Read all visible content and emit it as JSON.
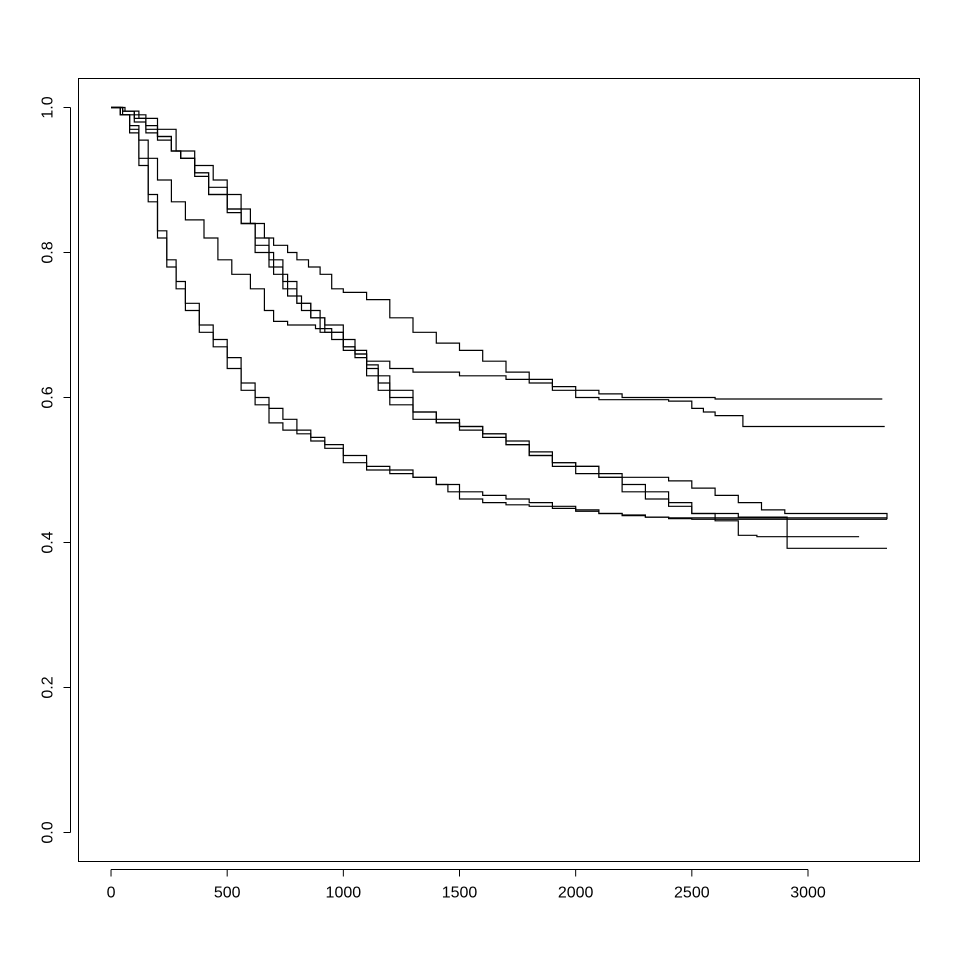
{
  "chart_data": {
    "type": "line",
    "title": "",
    "xlabel": "",
    "ylabel": "",
    "xlim": [
      -140,
      3480
    ],
    "ylim": [
      -0.04,
      1.04
    ],
    "x_ticks": [
      0,
      500,
      1000,
      1500,
      2000,
      2500,
      3000
    ],
    "x_tick_labels": [
      "0",
      "500",
      "1000",
      "1500",
      "2000",
      "2500",
      "3000"
    ],
    "y_ticks": [
      0.0,
      0.2,
      0.4,
      0.6,
      0.8,
      1.0
    ],
    "y_tick_labels": [
      "0.0",
      "0.2",
      "0.4",
      "0.6",
      "0.8",
      "1.0"
    ],
    "grid": false,
    "step": true,
    "series": [
      {
        "x": [
          0,
          60,
          120,
          200,
          280,
          360,
          440,
          500,
          560,
          600,
          660,
          700,
          760,
          800,
          850,
          900,
          950,
          1000,
          1100,
          1200,
          1300,
          1400,
          1500,
          1600,
          1700,
          1800,
          1900,
          2000,
          2100,
          2200,
          2300,
          2400,
          2500,
          2600,
          3320
        ],
        "y": [
          1.0,
          0.995,
          0.985,
          0.97,
          0.94,
          0.92,
          0.9,
          0.88,
          0.86,
          0.84,
          0.82,
          0.81,
          0.8,
          0.79,
          0.78,
          0.77,
          0.75,
          0.745,
          0.735,
          0.71,
          0.69,
          0.675,
          0.665,
          0.65,
          0.635,
          0.625,
          0.615,
          0.61,
          0.605,
          0.6,
          0.6,
          0.6,
          0.6,
          0.598,
          0.598
        ]
      },
      {
        "x": [
          0,
          50,
          100,
          150,
          200,
          260,
          300,
          360,
          420,
          500,
          560,
          620,
          700,
          760,
          820,
          900,
          950,
          1000,
          1050,
          1100,
          1200,
          1300,
          1500,
          1700,
          1800,
          1900,
          2000,
          2100,
          2200,
          2400,
          2500,
          2550,
          2600,
          2720,
          3330
        ],
        "y": [
          1.0,
          0.995,
          0.99,
          0.975,
          0.96,
          0.94,
          0.93,
          0.91,
          0.89,
          0.86,
          0.84,
          0.8,
          0.77,
          0.74,
          0.72,
          0.69,
          0.68,
          0.67,
          0.66,
          0.65,
          0.64,
          0.635,
          0.63,
          0.625,
          0.62,
          0.61,
          0.6,
          0.597,
          0.597,
          0.595,
          0.585,
          0.58,
          0.575,
          0.56,
          0.56
        ]
      },
      {
        "x": [
          0,
          50,
          100,
          150,
          200,
          260,
          300,
          360,
          420,
          500,
          560,
          620,
          680,
          740,
          800,
          860,
          920,
          1000,
          1050,
          1100,
          1150,
          1200,
          1300,
          1400,
          1500,
          1600,
          1700,
          1800,
          1900,
          2000,
          2100,
          2200,
          2300,
          2400,
          2500,
          2600,
          2700,
          2800,
          2900,
          3340
        ],
        "y": [
          1.0,
          0.995,
          0.985,
          0.97,
          0.96,
          0.94,
          0.93,
          0.91,
          0.88,
          0.86,
          0.84,
          0.81,
          0.78,
          0.75,
          0.73,
          0.71,
          0.7,
          0.67,
          0.66,
          0.64,
          0.62,
          0.6,
          0.58,
          0.57,
          0.56,
          0.55,
          0.535,
          0.52,
          0.51,
          0.505,
          0.495,
          0.49,
          0.49,
          0.485,
          0.475,
          0.465,
          0.455,
          0.445,
          0.44,
          0.432
        ]
      },
      {
        "x": [
          0,
          50,
          100,
          150,
          200,
          260,
          300,
          360,
          420,
          500,
          560,
          620,
          680,
          740,
          800,
          860,
          920,
          1000,
          1050,
          1100,
          1150,
          1200,
          1300,
          1400,
          1500,
          1600,
          1700,
          1800,
          1900,
          2000,
          2100,
          2200,
          2300,
          2400,
          2500,
          2700,
          2910,
          3340
        ],
        "y": [
          1.0,
          0.99,
          0.98,
          0.965,
          0.955,
          0.94,
          0.93,
          0.905,
          0.88,
          0.855,
          0.84,
          0.82,
          0.79,
          0.76,
          0.73,
          0.71,
          0.69,
          0.665,
          0.655,
          0.63,
          0.61,
          0.59,
          0.57,
          0.565,
          0.56,
          0.55,
          0.54,
          0.525,
          0.51,
          0.505,
          0.49,
          0.47,
          0.46,
          0.45,
          0.44,
          0.435,
          0.392,
          0.392
        ]
      },
      {
        "x": [
          0,
          40,
          80,
          120,
          160,
          200,
          260,
          320,
          400,
          460,
          520,
          600,
          660,
          700,
          760,
          820,
          880,
          950,
          1000,
          1050,
          1100,
          1150,
          1200,
          1300,
          1400,
          1500,
          1600,
          1700,
          1800,
          1900,
          2000,
          2100,
          2200,
          2300,
          2400,
          2500,
          2600,
          2700,
          2780,
          3220
        ],
        "y": [
          1.0,
          0.99,
          0.975,
          0.955,
          0.93,
          0.9,
          0.87,
          0.845,
          0.82,
          0.79,
          0.77,
          0.75,
          0.72,
          0.705,
          0.7,
          0.7,
          0.695,
          0.69,
          0.68,
          0.665,
          0.645,
          0.63,
          0.61,
          0.58,
          0.565,
          0.555,
          0.545,
          0.535,
          0.52,
          0.505,
          0.495,
          0.49,
          0.48,
          0.47,
          0.455,
          0.44,
          0.43,
          0.41,
          0.408,
          0.408
        ]
      },
      {
        "x": [
          0,
          40,
          80,
          120,
          160,
          200,
          240,
          280,
          320,
          380,
          440,
          500,
          560,
          620,
          680,
          740,
          800,
          860,
          920,
          1000,
          1100,
          1200,
          1300,
          1400,
          1500,
          1600,
          1700,
          1800,
          1900,
          2000,
          2100,
          2200,
          2300,
          2400,
          2500,
          2600,
          2700,
          2800,
          3340
        ],
        "y": [
          1.0,
          0.99,
          0.97,
          0.93,
          0.88,
          0.83,
          0.79,
          0.76,
          0.73,
          0.7,
          0.68,
          0.655,
          0.62,
          0.6,
          0.585,
          0.57,
          0.555,
          0.545,
          0.535,
          0.52,
          0.505,
          0.5,
          0.49,
          0.48,
          0.47,
          0.465,
          0.46,
          0.455,
          0.45,
          0.445,
          0.44,
          0.437,
          0.435,
          0.433,
          0.432,
          0.432,
          0.432,
          0.432,
          0.432
        ]
      },
      {
        "x": [
          0,
          40,
          80,
          120,
          160,
          200,
          240,
          280,
          320,
          380,
          440,
          500,
          560,
          620,
          680,
          740,
          800,
          860,
          920,
          1000,
          1100,
          1200,
          1300,
          1400,
          1450,
          1500,
          1600,
          1700,
          1800,
          1900,
          2000,
          2100,
          2200,
          2300,
          2400,
          2500,
          2600,
          2700,
          2900,
          3340
        ],
        "y": [
          1.0,
          0.99,
          0.965,
          0.92,
          0.87,
          0.82,
          0.78,
          0.75,
          0.72,
          0.69,
          0.67,
          0.64,
          0.61,
          0.59,
          0.565,
          0.555,
          0.55,
          0.54,
          0.53,
          0.51,
          0.5,
          0.495,
          0.49,
          0.48,
          0.47,
          0.46,
          0.455,
          0.452,
          0.45,
          0.447,
          0.443,
          0.44,
          0.438,
          0.435,
          0.434,
          0.434,
          0.434,
          0.434,
          0.434,
          0.434
        ]
      }
    ]
  }
}
